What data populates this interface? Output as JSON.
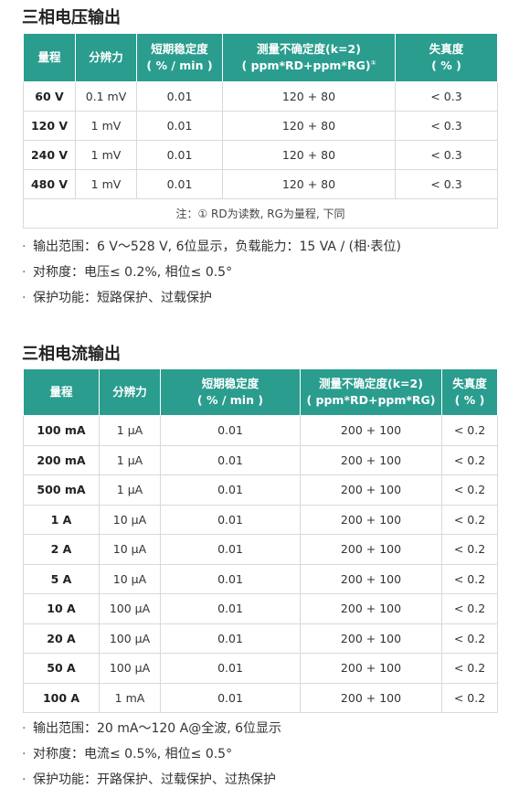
{
  "voltage": {
    "title": "三相电压输出",
    "headers": {
      "range": "量程",
      "resolution": "分辨力",
      "stability_l1": "短期稳定度",
      "stability_l2": "( % / min )",
      "uncertainty_l1": "测量不确定度(k=2)",
      "uncertainty_l2": "( ppm*RD+ppm*RG)",
      "uncertainty_mark": "①",
      "distortion_l1": "失真度",
      "distortion_l2": "( % )"
    },
    "rows": [
      {
        "range": "60 V",
        "resolution": "0.1 mV",
        "stability": "0.01",
        "uncertainty": "120 + 80",
        "distortion": "< 0.3"
      },
      {
        "range": "120 V",
        "resolution": "1 mV",
        "stability": "0.01",
        "uncertainty": "120 + 80",
        "distortion": "< 0.3"
      },
      {
        "range": "240 V",
        "resolution": "1 mV",
        "stability": "0.01",
        "uncertainty": "120 + 80",
        "distortion": "< 0.3"
      },
      {
        "range": "480 V",
        "resolution": "1 mV",
        "stability": "0.01",
        "uncertainty": "120 + 80",
        "distortion": "< 0.3"
      }
    ],
    "footnote": "注：① RD为读数, RG为量程, 下同",
    "notes": [
      "输出范围：6 V～528 V, 6位显示，负载能力：15 VA / (相·表位)",
      "对称度：电压≤ 0.2%, 相位≤ 0.5°",
      "保护功能：短路保护、过载保护"
    ]
  },
  "current": {
    "title": "三相电流输出",
    "headers": {
      "range": "量程",
      "resolution": "分辨力",
      "stability_l1": "短期稳定度",
      "stability_l2": "( % / min )",
      "uncertainty_l1": "测量不确定度(k=2)",
      "uncertainty_l2": "( ppm*RD+ppm*RG)",
      "distortion_l1": "失真度",
      "distortion_l2": "( % )"
    },
    "rows": [
      {
        "range": "100 mA",
        "resolution": "1 μA",
        "stability": "0.01",
        "uncertainty": "200 + 100",
        "distortion": "< 0.2"
      },
      {
        "range": "200 mA",
        "resolution": "1 μA",
        "stability": "0.01",
        "uncertainty": "200 + 100",
        "distortion": "< 0.2"
      },
      {
        "range": "500 mA",
        "resolution": "1 μA",
        "stability": "0.01",
        "uncertainty": "200 + 100",
        "distortion": "< 0.2"
      },
      {
        "range": "1 A",
        "resolution": "10 μA",
        "stability": "0.01",
        "uncertainty": "200 + 100",
        "distortion": "< 0.2"
      },
      {
        "range": "2 A",
        "resolution": "10 μA",
        "stability": "0.01",
        "uncertainty": "200 + 100",
        "distortion": "< 0.2"
      },
      {
        "range": "5 A",
        "resolution": "10 μA",
        "stability": "0.01",
        "uncertainty": "200 + 100",
        "distortion": "< 0.2"
      },
      {
        "range": "10 A",
        "resolution": "100 μA",
        "stability": "0.01",
        "uncertainty": "200 + 100",
        "distortion": "< 0.2"
      },
      {
        "range": "20 A",
        "resolution": "100 μA",
        "stability": "0.01",
        "uncertainty": "200 + 100",
        "distortion": "< 0.2"
      },
      {
        "range": "50 A",
        "resolution": "100 μA",
        "stability": "0.01",
        "uncertainty": "200 + 100",
        "distortion": "< 0.2"
      },
      {
        "range": "100 A",
        "resolution": "1 mA",
        "stability": "0.01",
        "uncertainty": "200 + 100",
        "distortion": "< 0.2"
      }
    ],
    "notes": [
      "输出范围：20 mA～120 A@全波, 6位显示",
      "对称度：电流≤ 0.5%, 相位≤ 0.5°",
      "保护功能：开路保护、过载保护、过热保护"
    ]
  },
  "bullet": "·",
  "colors": {
    "header_bg": "#2a9d8f",
    "header_text": "#ffffff",
    "border": "#d9d9d9"
  }
}
